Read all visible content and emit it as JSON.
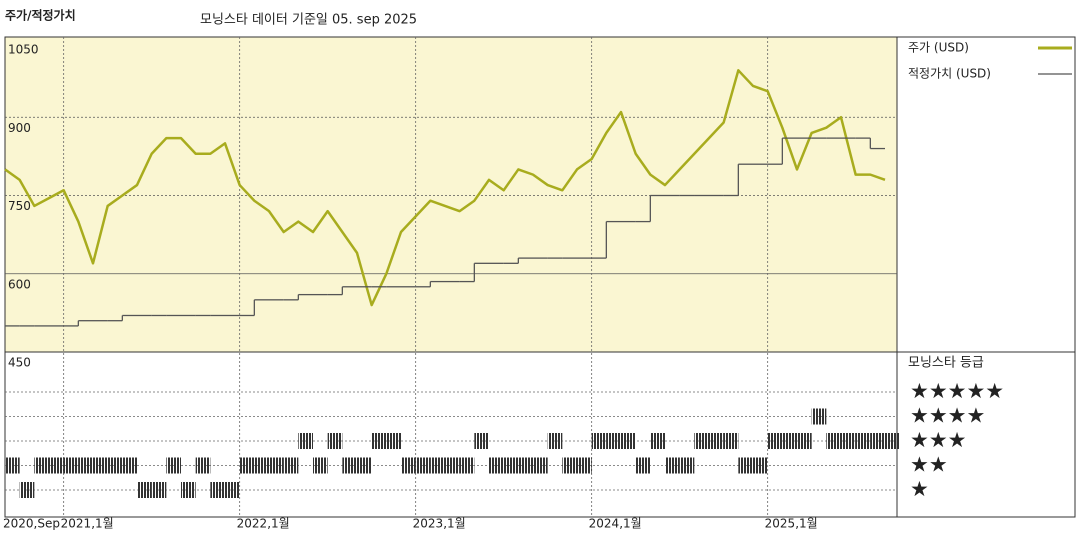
{
  "chart_data": {
    "type": "line",
    "title": "주가/적정가치",
    "subtitle": "모닝스타 데이터 기준일 05. sep 2025",
    "x": [
      "2020-09",
      "2020-10",
      "2020-11",
      "2020-12",
      "2021-01",
      "2021-02",
      "2021-03",
      "2021-04",
      "2021-05",
      "2021-06",
      "2021-07",
      "2021-08",
      "2021-09",
      "2021-10",
      "2021-11",
      "2021-12",
      "2022-01",
      "2022-02",
      "2022-03",
      "2022-04",
      "2022-05",
      "2022-06",
      "2022-07",
      "2022-08",
      "2022-09",
      "2022-10",
      "2022-11",
      "2022-12",
      "2023-01",
      "2023-02",
      "2023-03",
      "2023-04",
      "2023-05",
      "2023-06",
      "2023-07",
      "2023-08",
      "2023-09",
      "2023-10",
      "2023-11",
      "2023-12",
      "2024-01",
      "2024-02",
      "2024-03",
      "2024-04",
      "2024-05",
      "2024-06",
      "2024-07",
      "2024-08",
      "2024-09",
      "2024-10",
      "2024-11",
      "2024-12",
      "2025-01",
      "2025-02",
      "2025-03",
      "2025-04",
      "2025-05",
      "2025-06",
      "2025-07",
      "2025-08",
      "2025-09"
    ],
    "series": [
      {
        "name": "주가 (USD)",
        "color": "#a8ac1e",
        "values": [
          800,
          780,
          730,
          745,
          760,
          700,
          620,
          730,
          750,
          770,
          830,
          860,
          860,
          830,
          830,
          850,
          770,
          740,
          720,
          680,
          700,
          680,
          720,
          680,
          640,
          540,
          600,
          680,
          710,
          740,
          730,
          720,
          740,
          780,
          760,
          800,
          790,
          770,
          760,
          800,
          820,
          870,
          910,
          830,
          790,
          770,
          800,
          830,
          860,
          890,
          990,
          960,
          950,
          880,
          800,
          870,
          880,
          900,
          790,
          790,
          780
        ]
      },
      {
        "name": "적정가치 (USD)",
        "color": "#555555",
        "step": true,
        "values": [
          500,
          500,
          500,
          500,
          500,
          510,
          510,
          510,
          520,
          520,
          520,
          520,
          520,
          520,
          520,
          520,
          520,
          550,
          550,
          550,
          560,
          560,
          560,
          575,
          575,
          575,
          575,
          575,
          575,
          585,
          585,
          585,
          620,
          620,
          620,
          630,
          630,
          630,
          630,
          630,
          630,
          700,
          700,
          700,
          750,
          750,
          750,
          750,
          750,
          750,
          810,
          810,
          810,
          860,
          860,
          860,
          860,
          860,
          860,
          840,
          840
        ]
      }
    ],
    "ylim": [
      450,
      1050
    ],
    "yticks": [
      450,
      600,
      750,
      900,
      1050
    ],
    "xticks": [
      {
        "value": "2020-09",
        "label": "2020,Sep"
      },
      {
        "value": "2021-01",
        "label": "2021,1월"
      },
      {
        "value": "2022-01",
        "label": "2022,1월"
      },
      {
        "value": "2023-01",
        "label": "2023,1월"
      },
      {
        "value": "2024-01",
        "label": "2024,1월"
      },
      {
        "value": "2025-01",
        "label": "2025,1월"
      }
    ],
    "background": "#faf6d2",
    "ratings": {
      "title": "모닝스타 등급",
      "color": "#333333",
      "labels": [
        "★",
        "★★",
        "★★★",
        "★★★★",
        "★★★★★"
      ],
      "values": [
        2,
        1,
        2,
        2,
        2,
        2,
        2,
        2,
        2,
        1,
        1,
        2,
        1,
        2,
        1,
        1,
        2,
        2,
        2,
        2,
        3,
        2,
        3,
        2,
        2,
        3,
        3,
        2,
        2,
        2,
        2,
        2,
        3,
        2,
        2,
        2,
        2,
        3,
        2,
        2,
        3,
        3,
        3,
        2,
        3,
        2,
        2,
        3,
        3,
        3,
        2,
        2,
        3,
        3,
        3,
        4,
        3,
        3,
        3,
        3,
        3
      ]
    }
  }
}
